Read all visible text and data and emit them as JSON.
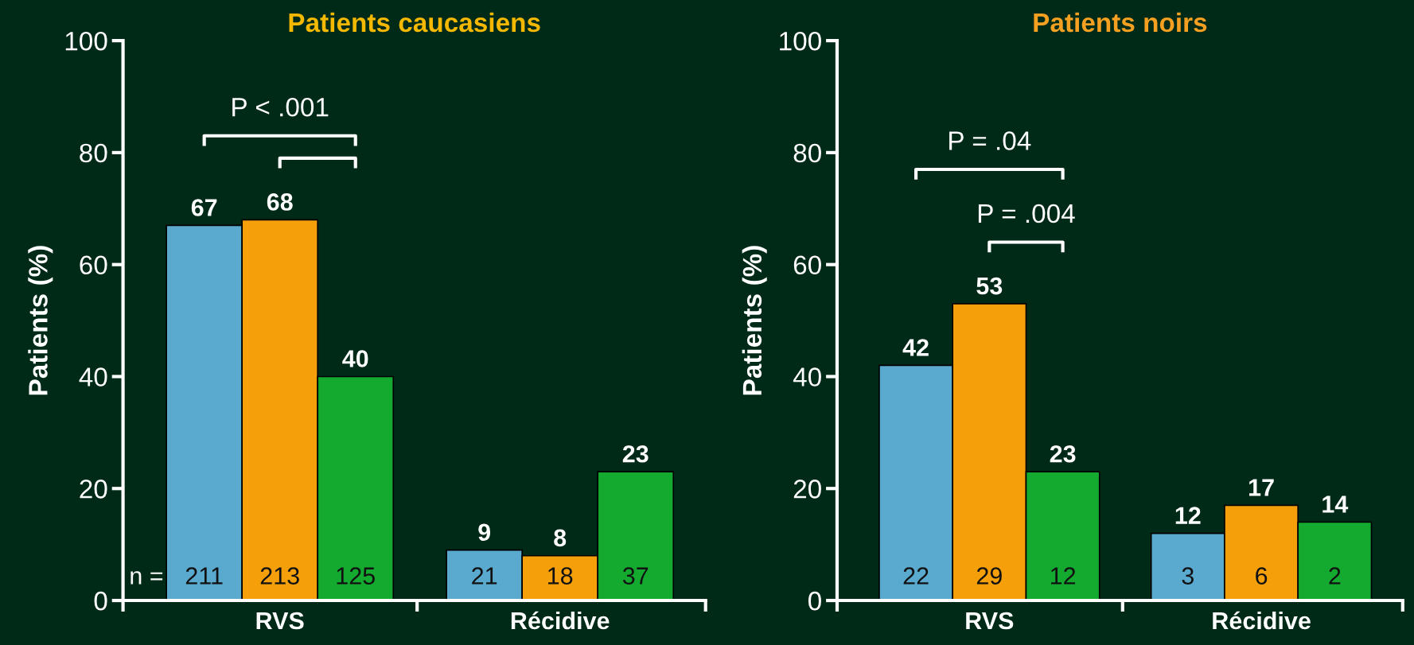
{
  "chart_data": [
    {
      "type": "bar",
      "title": "Patients caucasiens",
      "ylabel": "Patients (%)",
      "categories": [
        "RVS",
        "Récidive"
      ],
      "ylim": [
        0,
        100
      ],
      "yticks": [
        0,
        20,
        40,
        60,
        80,
        100
      ],
      "data_labels": true,
      "series": [
        {
          "color": "#5aaad0",
          "values": [
            67,
            9
          ]
        },
        {
          "color": "#f5a00a",
          "values": [
            68,
            8
          ]
        },
        {
          "color": "#14aa30",
          "values": [
            40,
            23
          ]
        }
      ],
      "annotations": [
        "n =",
        "P < .001",
        {
          "text": "211",
          "x": "RVS",
          "y": 0
        },
        {
          "text": "213",
          "x": "RVS",
          "y": 0
        },
        {
          "text": "125",
          "x": "RVS",
          "y": 0
        },
        {
          "text": "21",
          "x": "Récidive",
          "y": 0
        },
        {
          "text": "18",
          "x": "Récidive",
          "y": 0
        },
        {
          "text": "37",
          "x": "Récidive",
          "y": 0
        }
      ]
    },
    {
      "type": "bar",
      "title": "Patients noirs",
      "ylabel": "Patients (%)",
      "categories": [
        "RVS",
        "Récidive"
      ],
      "ylim": [
        0,
        100
      ],
      "yticks": [
        0,
        20,
        40,
        60,
        80,
        100
      ],
      "data_labels": true,
      "series": [
        {
          "color": "#5aaad0",
          "values": [
            42,
            12
          ]
        },
        {
          "color": "#f5a00a",
          "values": [
            53,
            17
          ]
        },
        {
          "color": "#14aa30",
          "values": [
            23,
            14
          ]
        }
      ],
      "annotations": [
        "P = .04",
        "P = .004",
        {
          "text": "22",
          "x": "RVS",
          "y": 0
        },
        {
          "text": "29",
          "x": "RVS",
          "y": 0
        },
        {
          "text": "12",
          "x": "RVS",
          "y": 0
        },
        {
          "text": "3",
          "x": "Récidive",
          "y": 0
        },
        {
          "text": "6",
          "x": "Récidive",
          "y": 0
        },
        {
          "text": "2",
          "x": "Récidive",
          "y": 0
        }
      ]
    }
  ]
}
